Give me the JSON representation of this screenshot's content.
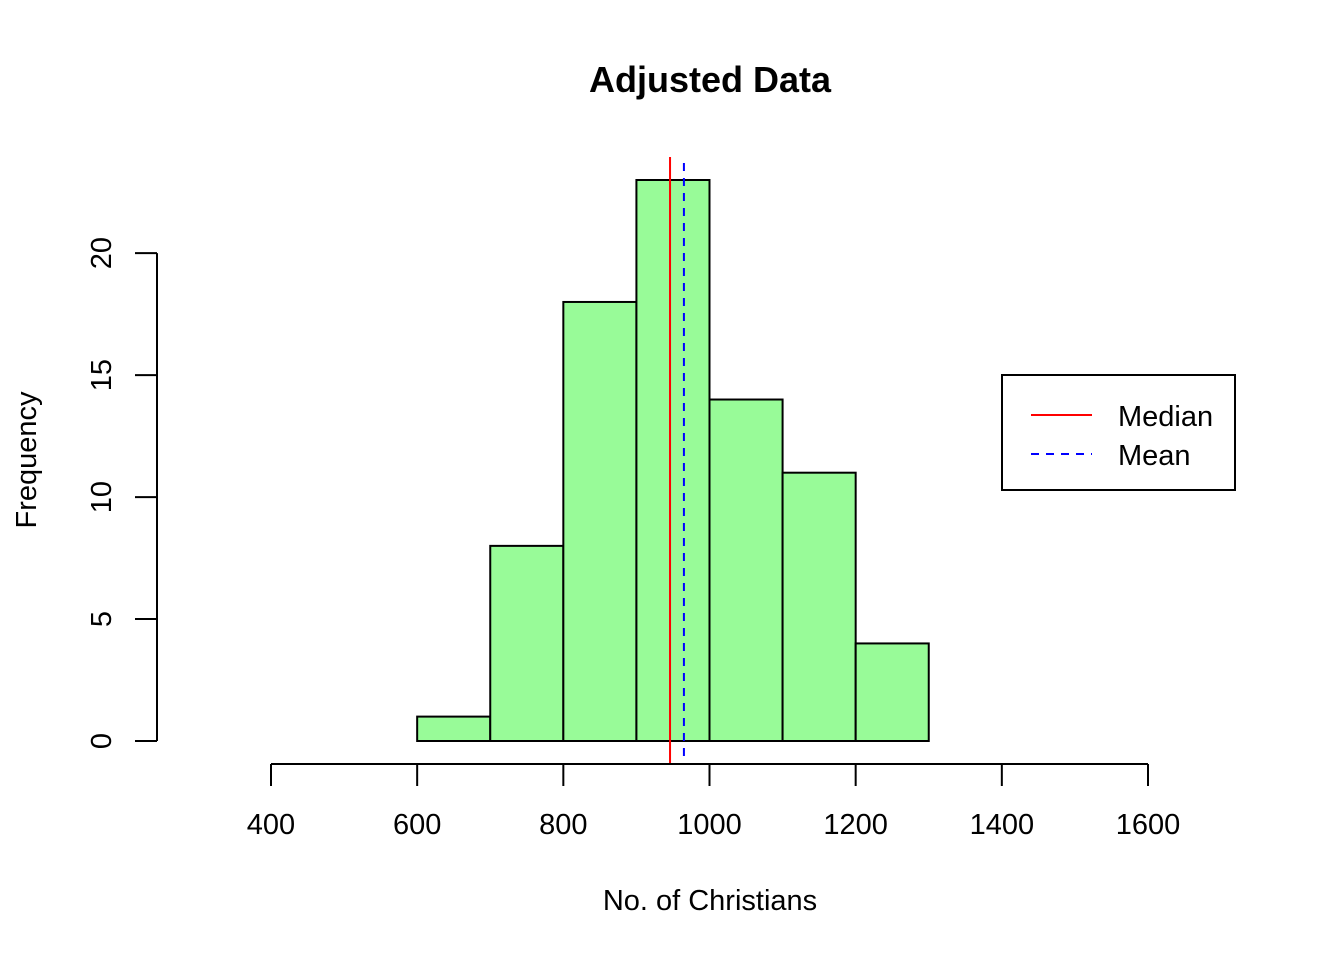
{
  "chart_data": {
    "type": "bar",
    "subtype": "histogram",
    "title": "Adjusted Data",
    "xlabel": "No. of Christians",
    "ylabel": "Frequency",
    "xlim": [
      400,
      1600
    ],
    "ylim": [
      0,
      23
    ],
    "x_ticks": [
      400,
      600,
      800,
      1000,
      1200,
      1400,
      1600
    ],
    "y_ticks": [
      0,
      5,
      10,
      15,
      20
    ],
    "bins": [
      {
        "start": 600,
        "end": 700,
        "count": 1
      },
      {
        "start": 700,
        "end": 800,
        "count": 8
      },
      {
        "start": 800,
        "end": 900,
        "count": 18
      },
      {
        "start": 900,
        "end": 1000,
        "count": 23
      },
      {
        "start": 1000,
        "end": 1100,
        "count": 14
      },
      {
        "start": 1100,
        "end": 1200,
        "count": 11
      },
      {
        "start": 1200,
        "end": 1300,
        "count": 4
      }
    ],
    "bar_color": "#98FB98",
    "bar_border_color": "#000000",
    "reference_lines": [
      {
        "name": "Median",
        "value": 946,
        "color": "#FF0000",
        "style": "solid"
      },
      {
        "name": "Mean",
        "value": 965,
        "color": "#0000FF",
        "style": "dashed"
      }
    ],
    "legend": {
      "position": "right",
      "entries": [
        "Median",
        "Mean"
      ]
    },
    "grid": false
  }
}
